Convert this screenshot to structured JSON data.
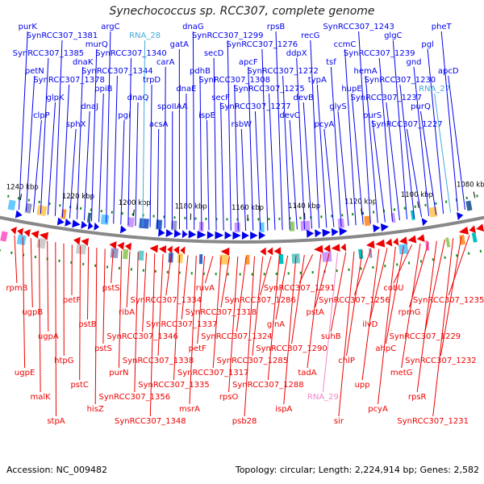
{
  "title": "Synechococcus sp. RCC307, complete genome",
  "footer": {
    "accession": "Accession: NC_009482",
    "summary": "Topology: circular; Length: 2,224,914 bp; Genes: 2,582"
  },
  "colors": {
    "forward_strand": "#0000ee",
    "reverse_strand": "#ee0000",
    "rna_label": "#44aadd",
    "rna_label_reverse": "#ee88cc",
    "backbone": "#888888"
  },
  "ruler_ticks": [
    {
      "kbp": 1240,
      "label": "1240 kbp"
    },
    {
      "kbp": 1220,
      "label": "1220 kbp"
    },
    {
      "kbp": 1200,
      "label": "1200 kbp"
    },
    {
      "kbp": 1180,
      "label": "1180 kbp"
    },
    {
      "kbp": 1160,
      "label": "1160 kbp"
    },
    {
      "kbp": 1140,
      "label": "1140 kbp"
    },
    {
      "kbp": 1120,
      "label": "1120 kbp"
    },
    {
      "kbp": 1100,
      "label": "1100 kbp"
    },
    {
      "kbp": 1080,
      "label": "1080 kbp"
    }
  ],
  "forward_labels": [
    "purK",
    "petN",
    "clpP",
    "SynRCC307_1385",
    "glpK",
    "SynRCC307_1381",
    "SynRCC307_1378",
    "sphX",
    "dnaK",
    "dnaJ",
    "murQ",
    "ppiB",
    "argC",
    "SynRCC307_1344",
    "pgi",
    "SynRCC307_1340",
    "dnaQ",
    "RNA_28",
    "trpD",
    "acsA",
    "carA",
    "spoIIAA",
    "gatA",
    "dnaE",
    "dnaG",
    "pdhB",
    "ispE",
    "secD",
    "secF",
    "SynRCC307_1299",
    "SynRCC307_1308",
    "rsbW",
    "apcF",
    "SynRCC307_1277",
    "SynRCC307_1276",
    "SynRCC307_1275",
    "rpsB",
    "SynRCC307_1272",
    "devC",
    "ddpX",
    "devB",
    "recG",
    "typA",
    "pcyA",
    "tsf",
    "glyS",
    "ccmC",
    "hupE",
    "SynRCC307_1243",
    "hemA",
    "purS",
    "SynRCC307_1239",
    "SynRCC307_1237",
    "glgC",
    "SynRCC307_1230",
    "SynRCC307_1227",
    "gnd",
    "purQ",
    "pgl",
    "RNA_27",
    "pheT",
    "apcD"
  ],
  "reverse_labels": [
    "rpmB",
    "ugpE",
    "ugpB",
    "malK",
    "ugpA",
    "stpA",
    "htpG",
    "petF",
    "pstC",
    "pstB",
    "hisZ",
    "pstS",
    "pstS",
    "purN",
    "ribA",
    "SynRCC307_1356",
    "SynRCC307_1346",
    "SynRCC307_1348",
    "SynRCC307_1338",
    "SynRCC307_1334",
    "SynRCC307_1335",
    "SynRCC307_1337",
    "msrA",
    "petF",
    "ruvA",
    "SynRCC307_1317",
    "SynRCC307_1318",
    "rpsO",
    "SynRCC307_1324",
    "psb28",
    "SynRCC307_1285",
    "SynRCC307_1286",
    "SynRCC307_1288",
    "glnA",
    "ispA",
    "SynRCC307_1290",
    "SynRCC307_1291",
    "tadA",
    "pstA",
    "RNA_29",
    "suhB",
    "sir",
    "chlP",
    "SynRCC307_1256",
    "upp",
    "ilvD",
    "pcyA",
    "ahpC",
    "cobU",
    "metG",
    "rpmG",
    "rpsR",
    "SynRCC307_1229",
    "SynRCC307_1231",
    "SynRCC307_1232",
    "SynRCC307_1235"
  ]
}
